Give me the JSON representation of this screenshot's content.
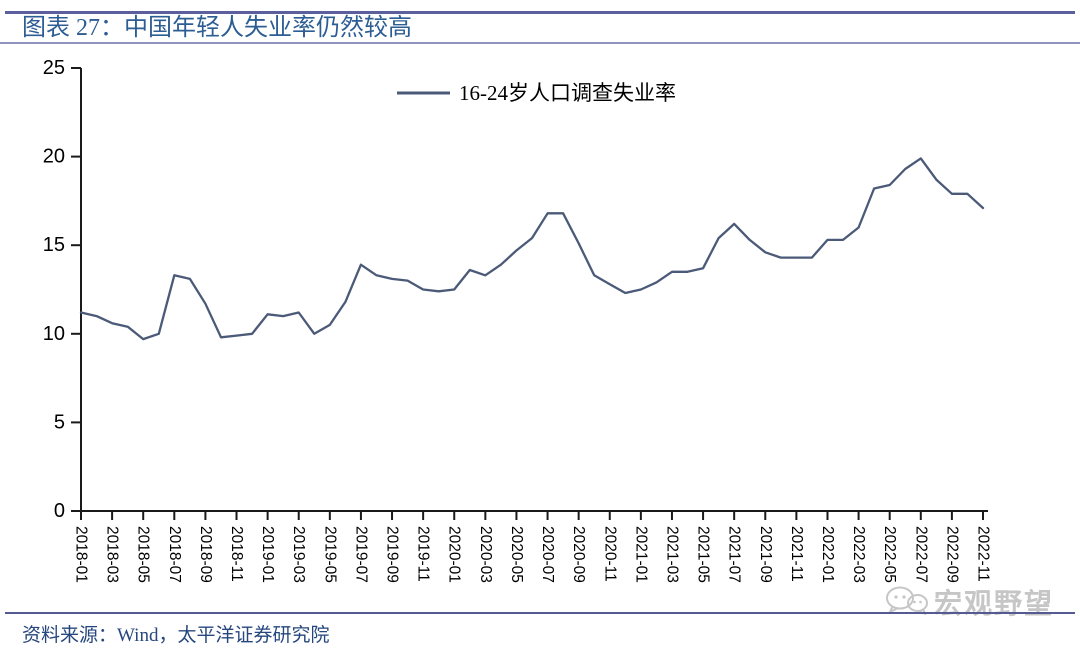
{
  "page": {
    "title": "图表 27：中国年轻人失业率仍然较高",
    "source_note": "资料来源：Wind，太平洋证券研究院",
    "watermark": "宏观野望"
  },
  "colors": {
    "title_text": "#2c5d93",
    "rule_top": "#5b5f9e",
    "rule_title_underline": "#9094c1",
    "rule_footer": "#565a92",
    "series_line": "#4b5a78",
    "axis": "#1a1a1a",
    "tick_label": "#000000",
    "watermark": "#c6c6c6"
  },
  "chart_data": {
    "type": "line",
    "title": "",
    "legend": [
      "16-24岁人口调查失业率"
    ],
    "legend_position": "top-center",
    "grid": false,
    "ylim": [
      0,
      25
    ],
    "yticks": [
      0,
      5,
      10,
      15,
      20,
      25
    ],
    "xtick_every": 2,
    "x": [
      "2018-01",
      "2018-02",
      "2018-03",
      "2018-04",
      "2018-05",
      "2018-06",
      "2018-07",
      "2018-08",
      "2018-09",
      "2018-10",
      "2018-11",
      "2018-12",
      "2019-01",
      "2019-02",
      "2019-03",
      "2019-04",
      "2019-05",
      "2019-06",
      "2019-07",
      "2019-08",
      "2019-09",
      "2019-10",
      "2019-11",
      "2019-12",
      "2020-01",
      "2020-02",
      "2020-03",
      "2020-04",
      "2020-05",
      "2020-06",
      "2020-07",
      "2020-08",
      "2020-09",
      "2020-10",
      "2020-11",
      "2020-12",
      "2021-01",
      "2021-02",
      "2021-03",
      "2021-04",
      "2021-05",
      "2021-06",
      "2021-07",
      "2021-08",
      "2021-09",
      "2021-10",
      "2021-11",
      "2021-12",
      "2022-01",
      "2022-02",
      "2022-03",
      "2022-04",
      "2022-05",
      "2022-06",
      "2022-07",
      "2022-08",
      "2022-09",
      "2022-10",
      "2022-11"
    ],
    "series": [
      {
        "name": "16-24岁人口调查失业率",
        "values": [
          11.2,
          11.0,
          10.6,
          10.4,
          9.7,
          10.0,
          13.3,
          13.1,
          11.7,
          9.8,
          9.9,
          10.0,
          11.1,
          11.0,
          11.2,
          10.0,
          10.5,
          11.8,
          13.9,
          13.3,
          13.1,
          13.0,
          12.5,
          12.4,
          12.5,
          13.6,
          13.3,
          13.9,
          14.7,
          15.4,
          16.8,
          16.8,
          15.1,
          13.3,
          12.8,
          12.3,
          12.5,
          12.9,
          13.5,
          13.5,
          13.7,
          15.4,
          16.2,
          15.3,
          14.6,
          14.3,
          14.3,
          14.3,
          15.3,
          15.3,
          16.0,
          18.2,
          18.4,
          19.3,
          19.9,
          18.7,
          17.9,
          17.9,
          17.1
        ]
      }
    ]
  }
}
